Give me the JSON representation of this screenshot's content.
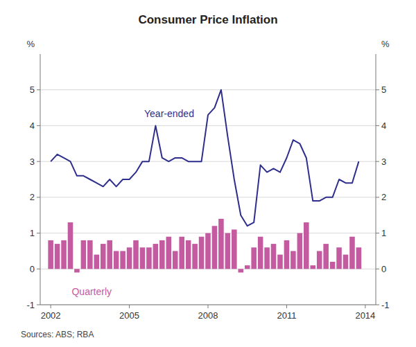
{
  "chart_data": {
    "type": "bar",
    "title": "Consumer Price Inflation",
    "source": "Sources:  ABS; RBA",
    "ylabel": "%",
    "y2label": "%",
    "x": [
      2002.0,
      2002.25,
      2002.5,
      2002.75,
      2003.0,
      2003.25,
      2003.5,
      2003.75,
      2004.0,
      2004.25,
      2004.5,
      2004.75,
      2005.0,
      2005.25,
      2005.5,
      2005.75,
      2006.0,
      2006.25,
      2006.5,
      2006.75,
      2007.0,
      2007.25,
      2007.5,
      2007.75,
      2008.0,
      2008.25,
      2008.5,
      2008.75,
      2009.0,
      2009.25,
      2009.5,
      2009.75,
      2010.0,
      2010.25,
      2010.5,
      2010.75,
      2011.0,
      2011.25,
      2011.5,
      2011.75,
      2012.0,
      2012.25,
      2012.5,
      2012.75,
      2013.0,
      2013.25,
      2013.5,
      2013.75
    ],
    "xlim": [
      2001.6,
      2014.4
    ],
    "xticks": [
      2002,
      2005,
      2008,
      2011,
      2014
    ],
    "ylim": [
      -1,
      6
    ],
    "yticks": [
      -1,
      0,
      1,
      2,
      3,
      4,
      5
    ],
    "y2lim": [
      -1,
      6
    ],
    "y2ticks": [
      -1,
      0,
      1,
      2,
      3,
      4,
      5
    ],
    "grid": true,
    "series": [
      {
        "name": "Quarterly",
        "type": "bar",
        "color": "#c45aa0",
        "values": [
          0.8,
          0.7,
          0.8,
          1.3,
          -0.1,
          0.8,
          0.8,
          0.4,
          0.7,
          0.8,
          0.5,
          0.5,
          0.6,
          0.8,
          0.6,
          0.6,
          0.7,
          0.8,
          0.9,
          0.5,
          0.9,
          0.8,
          0.7,
          0.9,
          1.0,
          1.2,
          1.4,
          1.0,
          1.1,
          -0.1,
          0.1,
          0.6,
          0.9,
          0.6,
          0.7,
          0.4,
          0.8,
          0.5,
          1.0,
          1.3,
          0.1,
          0.5,
          0.7,
          0.2,
          0.6,
          0.4,
          0.9,
          0.6
        ]
      },
      {
        "name": "Year-ended",
        "type": "line",
        "color": "#2e2e8c",
        "values": [
          3.0,
          3.2,
          3.1,
          3.0,
          2.6,
          2.6,
          2.5,
          2.4,
          2.3,
          2.5,
          2.3,
          2.5,
          2.5,
          2.7,
          3.0,
          3.0,
          4.0,
          3.1,
          3.0,
          3.1,
          3.1,
          3.0,
          3.0,
          3.0,
          4.3,
          4.5,
          5.0,
          3.7,
          2.5,
          1.5,
          1.2,
          1.3,
          2.9,
          2.7,
          2.8,
          2.7,
          3.1,
          3.6,
          3.5,
          3.1,
          1.9,
          1.9,
          2.0,
          2.0,
          2.5,
          2.4,
          2.4,
          3.0
        ]
      }
    ]
  }
}
